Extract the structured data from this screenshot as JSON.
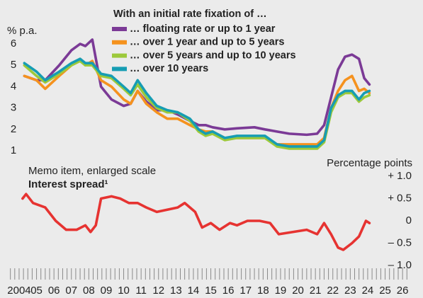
{
  "chart_data": [
    {
      "type": "line",
      "y_label": "% p.a.",
      "legend_title": "With an initial rate fixation of …",
      "legend": "top",
      "x": [
        2004.8,
        2005.5,
        2006.0,
        2006.8,
        2007.5,
        2008.0,
        2008.3,
        2008.7,
        2009.2,
        2009.8,
        2010.5,
        2010.9,
        2011.3,
        2011.8,
        2012.4,
        2013.0,
        2013.6,
        2014.3,
        2014.8,
        2015.2,
        2015.6,
        2016.3,
        2017.0,
        2018.0,
        2018.6,
        2019.3,
        2020.0,
        2021.0,
        2021.6,
        2022.0,
        2022.4,
        2022.8,
        2023.2,
        2023.6,
        2024.0,
        2024.3,
        2024.6
      ],
      "xlim": [
        2003.9,
        2027.1
      ],
      "ylim": [
        0.6,
        6.6
      ],
      "yticks": [
        1,
        2,
        3,
        4,
        5,
        6
      ],
      "series": [
        {
          "name": "… floating rate or up to 1 year",
          "color": "#7b3a96",
          "values": [
            4.5,
            4.3,
            4.3,
            5.0,
            5.7,
            6.0,
            5.9,
            6.2,
            4.0,
            3.4,
            3.1,
            3.2,
            3.8,
            3.3,
            2.9,
            2.9,
            2.7,
            2.4,
            2.2,
            2.2,
            2.1,
            2.0,
            2.05,
            2.1,
            2.0,
            1.9,
            1.8,
            1.75,
            1.8,
            2.2,
            3.5,
            4.8,
            5.4,
            5.5,
            5.3,
            4.4,
            4.1
          ]
        },
        {
          "name": "… over 1 year and up to 5 years",
          "color": "#f5921e",
          "values": [
            4.5,
            4.3,
            3.9,
            4.5,
            5.0,
            5.3,
            5.0,
            5.2,
            4.3,
            4.0,
            3.4,
            3.2,
            3.8,
            3.2,
            2.8,
            2.5,
            2.5,
            2.2,
            2.0,
            1.9,
            1.9,
            1.6,
            1.6,
            1.6,
            1.6,
            1.3,
            1.3,
            1.3,
            1.3,
            1.6,
            3.0,
            3.8,
            4.3,
            4.5,
            3.8,
            3.9,
            3.7
          ]
        },
        {
          "name": "… over 5 years and up to 10 years",
          "color": "#9cc93b",
          "values": [
            5.0,
            4.5,
            4.2,
            4.6,
            5.0,
            5.2,
            5.0,
            5.0,
            4.5,
            4.4,
            3.9,
            3.6,
            4.1,
            3.5,
            3.0,
            2.8,
            2.8,
            2.4,
            1.9,
            1.7,
            1.8,
            1.5,
            1.6,
            1.6,
            1.6,
            1.2,
            1.1,
            1.1,
            1.1,
            1.4,
            2.8,
            3.5,
            3.7,
            3.7,
            3.3,
            3.5,
            3.6
          ]
        },
        {
          "name": "… over 10 years",
          "color": "#169db3",
          "values": [
            5.1,
            4.7,
            4.3,
            4.7,
            5.1,
            5.3,
            5.1,
            5.1,
            4.6,
            4.5,
            4.0,
            3.7,
            4.3,
            3.7,
            3.1,
            2.9,
            2.8,
            2.5,
            2.0,
            1.8,
            1.9,
            1.6,
            1.7,
            1.7,
            1.7,
            1.3,
            1.2,
            1.2,
            1.2,
            1.5,
            3.0,
            3.6,
            3.8,
            3.8,
            3.4,
            3.7,
            3.8
          ]
        }
      ]
    },
    {
      "type": "line",
      "title": "Memo item, enlarged scale",
      "subtitle": "Interest spread¹",
      "y_label": "Percentage points",
      "color": "#e63331",
      "x": [
        2004.7,
        2004.9,
        2005.3,
        2006.0,
        2006.6,
        2007.2,
        2007.8,
        2008.3,
        2008.6,
        2008.9,
        2009.2,
        2009.8,
        2010.3,
        2010.8,
        2011.3,
        2011.8,
        2012.4,
        2013.0,
        2013.6,
        2014.0,
        2014.6,
        2015.0,
        2015.5,
        2016.0,
        2016.6,
        2017.0,
        2017.6,
        2018.3,
        2018.9,
        2019.4,
        2020.2,
        2021.0,
        2021.6,
        2022.0,
        2022.4,
        2022.8,
        2023.1,
        2023.6,
        2024.0,
        2024.4,
        2024.6
      ],
      "values": [
        0.5,
        0.6,
        0.4,
        0.3,
        0.0,
        -0.2,
        -0.2,
        -0.1,
        -0.25,
        -0.1,
        0.5,
        0.55,
        0.5,
        0.4,
        0.4,
        0.3,
        0.2,
        0.25,
        0.3,
        0.4,
        0.2,
        -0.15,
        -0.05,
        -0.2,
        -0.05,
        -0.1,
        0.0,
        0.0,
        -0.05,
        -0.3,
        -0.25,
        -0.2,
        -0.3,
        -0.05,
        -0.3,
        -0.6,
        -0.65,
        -0.5,
        -0.35,
        0.0,
        -0.05
      ],
      "xlim": [
        2003.9,
        2027.1
      ],
      "ylim": [
        -1.2,
        1.2
      ],
      "yticks": [
        {
          "value": 1,
          "label": "+ 1.0"
        },
        {
          "value": 0.5,
          "label": "+ 0.5"
        },
        0,
        {
          "value": -0.5,
          "label": "– 0.5"
        },
        {
          "value": -1,
          "label": "– 1.0"
        }
      ],
      "xticks": [
        {
          "value": 2004,
          "label": "2004"
        },
        {
          "value": 2005,
          "label": "05"
        },
        {
          "value": 2006,
          "label": "06"
        },
        {
          "value": 2007,
          "label": "07"
        },
        {
          "value": 2008,
          "label": "08"
        },
        {
          "value": 2009,
          "label": "09"
        },
        {
          "value": 2010,
          "label": "10"
        },
        {
          "value": 2011,
          "label": "11"
        },
        {
          "value": 2012,
          "label": "12"
        },
        {
          "value": 2013,
          "label": "13"
        },
        {
          "value": 2014,
          "label": "14"
        },
        {
          "value": 2015,
          "label": "15"
        },
        {
          "value": 2016,
          "label": "16"
        },
        {
          "value": 2017,
          "label": "17"
        },
        {
          "value": 2018,
          "label": "18"
        },
        {
          "value": 2019,
          "label": "19"
        },
        {
          "value": 2020,
          "label": "20"
        },
        {
          "value": 2021,
          "label": "21"
        },
        {
          "value": 2022,
          "label": "22"
        },
        {
          "value": 2023,
          "label": "23"
        },
        {
          "value": 2024,
          "label": "24"
        },
        {
          "value": 2025,
          "label": "25"
        },
        {
          "value": 2026,
          "label": "26"
        }
      ]
    }
  ]
}
